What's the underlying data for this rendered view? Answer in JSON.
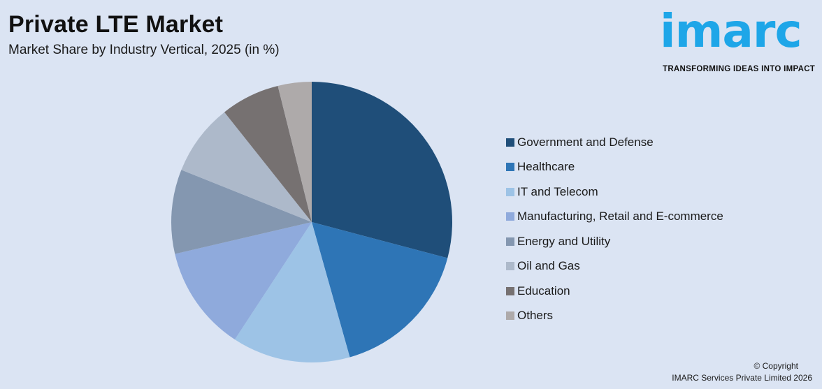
{
  "header": {
    "title": "Private LTE Market",
    "subtitle": "Market Share by Industry Vertical, 2025 (in %)"
  },
  "logo": {
    "word": "imarc",
    "tagline": "TRANSFORMING IDEAS INTO IMPACT",
    "color": "#1ea6e8"
  },
  "footer": {
    "copyright_line1": "© Copyright",
    "copyright_line2": "IMARC Services Private Limited 2026"
  },
  "chart_data": {
    "type": "pie",
    "title": "Private LTE Market",
    "subtitle": "Market Share by Industry Vertical, 2025 (in %)",
    "legend_position": "right",
    "slices": [
      {
        "label": "Government and Defense",
        "value": 30,
        "color": "#1f4e79"
      },
      {
        "label": "Healthcare",
        "value": 17,
        "color": "#2e75b6"
      },
      {
        "label": "IT and Telecom",
        "value": 14,
        "color": "#9dc3e6"
      },
      {
        "label": "Manufacturing, Retail and E-commerce",
        "value": 12.5,
        "color": "#8faadc"
      },
      {
        "label": "Energy and Utility",
        "value": 10,
        "color": "#8497b0"
      },
      {
        "label": "Oil and Gas",
        "value": 8.5,
        "color": "#adb9ca"
      },
      {
        "label": "Education",
        "value": 7,
        "color": "#767171"
      },
      {
        "label": "Others",
        "value": 4,
        "color": "#aeaaaa"
      }
    ]
  }
}
